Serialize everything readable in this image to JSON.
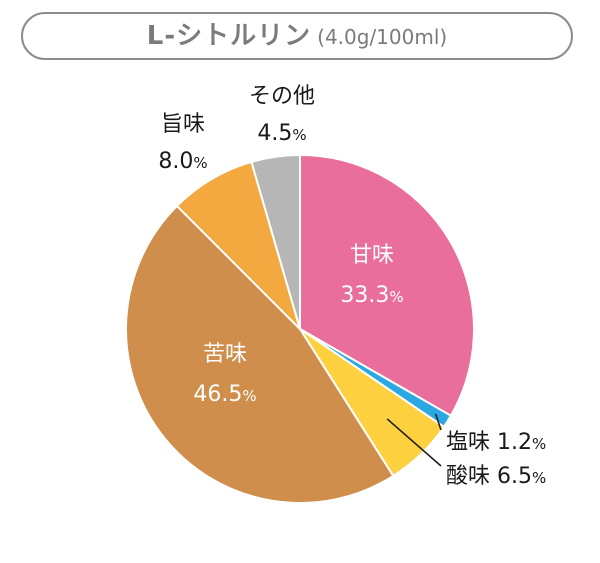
{
  "title": {
    "main": "L-シトルリン",
    "sub": "(4.0g/100ml)"
  },
  "chart_data": {
    "type": "pie",
    "start_angle_deg": 0,
    "direction": "clockwise",
    "slices": [
      {
        "name": "甘味",
        "value": 33.3,
        "value_text": "33.3",
        "unit": "%",
        "color": "#ea6e9b"
      },
      {
        "name": "塩味",
        "value": 1.2,
        "value_text": "1.2",
        "unit": "%",
        "color": "#2ba7e1"
      },
      {
        "name": "酸味",
        "value": 6.5,
        "value_text": "6.5",
        "unit": "%",
        "color": "#fcd03f"
      },
      {
        "name": "苦味",
        "value": 46.5,
        "value_text": "46.5",
        "unit": "%",
        "color": "#cf8e4b"
      },
      {
        "name": "旨味",
        "value": 8.0,
        "value_text": "8.0",
        "unit": "%",
        "color": "#f3a93f"
      },
      {
        "name": "その他",
        "value": 4.5,
        "value_text": "4.5",
        "unit": "%",
        "color": "#b6b6b6"
      }
    ]
  }
}
